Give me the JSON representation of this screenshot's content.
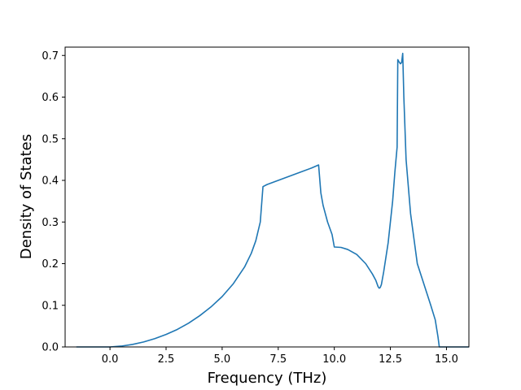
{
  "chart_data": {
    "type": "line",
    "title": "",
    "xlabel": "Frequency (THz)",
    "ylabel": "Density of States",
    "xlim": [
      -2.0,
      16.0
    ],
    "ylim": [
      0.0,
      0.72
    ],
    "xticks": [
      0.0,
      2.5,
      5.0,
      7.5,
      10.0,
      12.5,
      15.0
    ],
    "xtick_labels": [
      "0.0",
      "2.5",
      "5.0",
      "7.5",
      "10.0",
      "12.5",
      "15.0"
    ],
    "yticks": [
      0.0,
      0.1,
      0.2,
      0.3,
      0.4,
      0.5,
      0.6,
      0.7
    ],
    "ytick_labels": [
      "0.0",
      "0.1",
      "0.2",
      "0.3",
      "0.4",
      "0.5",
      "0.6",
      "0.7"
    ],
    "grid": false,
    "colors": {
      "line": "#1f77b4",
      "axis": "#000000",
      "background": "#ffffff"
    },
    "series": [
      {
        "x": [
          -1.5,
          -0.5,
          0.0,
          0.5,
          1.0,
          1.5,
          2.0,
          2.5,
          3.0,
          3.5,
          4.0,
          4.5,
          5.0,
          5.5,
          6.0,
          6.3,
          6.5,
          6.7,
          6.82,
          7.0,
          7.5,
          8.0,
          8.5,
          9.0,
          9.3,
          9.4,
          9.5,
          9.7,
          9.9,
          10.0,
          10.3,
          10.6,
          11.0,
          11.4,
          11.7,
          11.85,
          11.95,
          12.0,
          12.05,
          12.1,
          12.2,
          12.4,
          12.6,
          12.7,
          12.8,
          12.83,
          12.88,
          12.95,
          13.0,
          13.05,
          13.1,
          13.2,
          13.4,
          13.7,
          14.0,
          14.3,
          14.5,
          14.62,
          14.68,
          14.8,
          15.0,
          15.5,
          16.0
        ],
        "y": [
          0.0,
          0.0,
          0.0,
          0.002,
          0.006,
          0.012,
          0.02,
          0.03,
          0.042,
          0.057,
          0.075,
          0.096,
          0.121,
          0.152,
          0.192,
          0.225,
          0.255,
          0.3,
          0.385,
          0.39,
          0.4,
          0.41,
          0.42,
          0.43,
          0.437,
          0.37,
          0.34,
          0.3,
          0.27,
          0.24,
          0.239,
          0.234,
          0.222,
          0.2,
          0.175,
          0.16,
          0.145,
          0.141,
          0.143,
          0.15,
          0.18,
          0.25,
          0.35,
          0.42,
          0.48,
          0.69,
          0.685,
          0.68,
          0.683,
          0.705,
          0.6,
          0.45,
          0.32,
          0.2,
          0.15,
          0.1,
          0.065,
          0.025,
          0.0,
          0.0,
          0.0,
          0.0,
          0.0
        ]
      }
    ]
  }
}
